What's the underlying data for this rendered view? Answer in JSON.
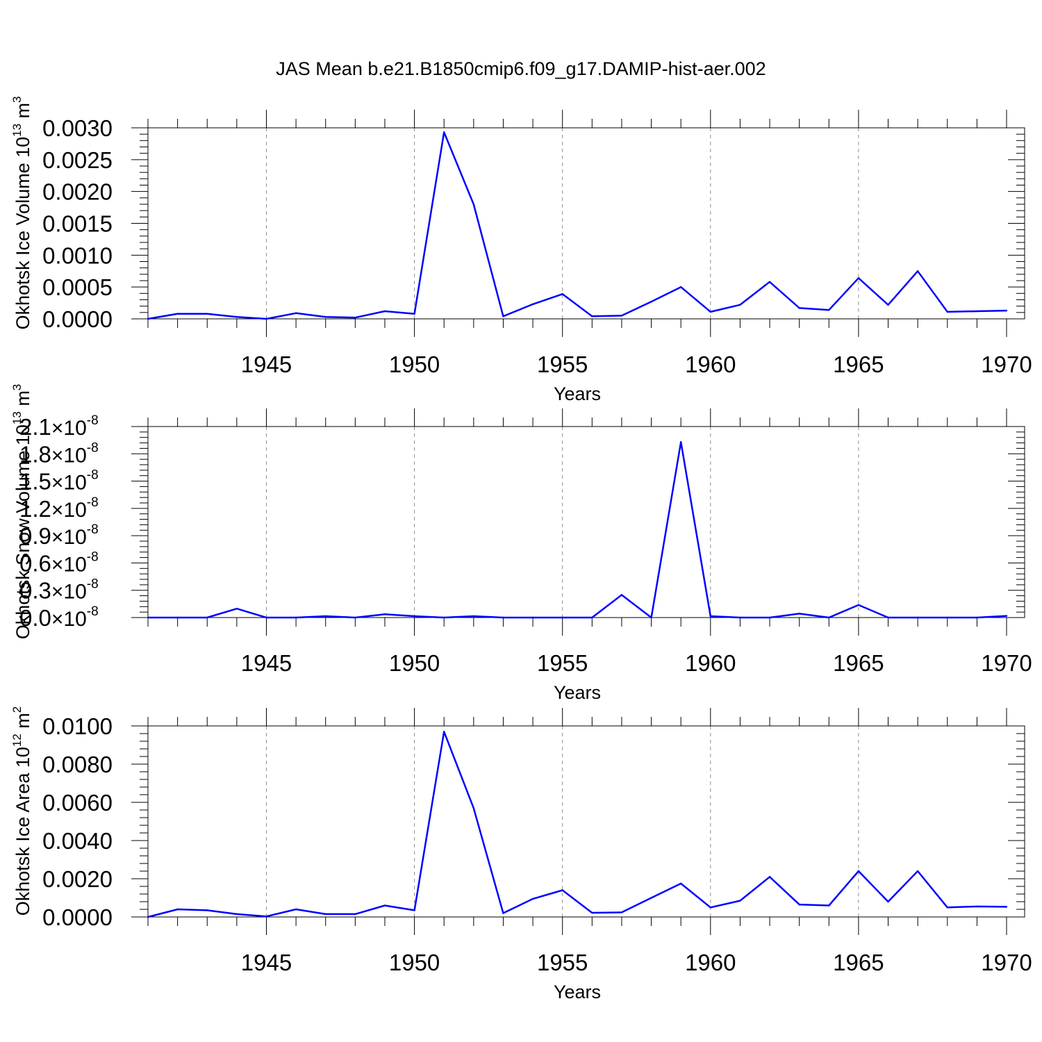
{
  "title": "JAS Mean b.e21.B1850cmip6.f09_g17.DAMIP-hist-aer.002",
  "colors": {
    "line": "#0000ff",
    "axis": "#000000",
    "grid": "#8c8c8c",
    "background": "#ffffff"
  },
  "chart_data": [
    {
      "type": "line",
      "ylabel": {
        "text": "Okhotsk Ice Volume 10",
        "sup": "13",
        "unit": " m",
        "unit_sup": "3"
      },
      "xlabel": "Years",
      "xlim": [
        1941,
        1970
      ],
      "ylim": [
        0,
        0.003
      ],
      "x_ticks": [
        1945,
        1950,
        1955,
        1960,
        1965,
        1970
      ],
      "y_ticks": [
        0,
        0.0005,
        0.001,
        0.0015,
        0.002,
        0.0025,
        0.003
      ],
      "y_tick_labels": [
        "0.0000",
        "0.0005",
        "0.0010",
        "0.0015",
        "0.0020",
        "0.0025",
        "0.0030"
      ],
      "grid": "vertical dashed at major x ticks",
      "x": [
        1941,
        1942,
        1943,
        1944,
        1945,
        1946,
        1947,
        1948,
        1949,
        1950,
        1951,
        1952,
        1953,
        1954,
        1955,
        1956,
        1957,
        1958,
        1959,
        1960,
        1961,
        1962,
        1963,
        1964,
        1965,
        1966,
        1967,
        1968,
        1969,
        1970
      ],
      "values": [
        0.0,
        8e-05,
        8e-05,
        3e-05,
        0.0,
        9e-05,
        3e-05,
        2e-05,
        0.00012,
        8e-05,
        0.00293,
        0.0018,
        4e-05,
        0.00023,
        0.00039,
        4e-05,
        5e-05,
        0.00027,
        0.0005,
        0.00011,
        0.00022,
        0.00058,
        0.00017,
        0.00014,
        0.00064,
        0.00022,
        0.00075,
        0.00011,
        0.00012,
        0.00013
      ]
    },
    {
      "type": "line",
      "ylabel": {
        "text": "Okhotsk Snow Volume 10",
        "sup": "13",
        "unit": " m",
        "unit_sup": "3"
      },
      "xlabel": "Years",
      "xlim": [
        1941,
        1970
      ],
      "ylim": [
        0,
        2.1e-08
      ],
      "x_ticks": [
        1945,
        1950,
        1955,
        1960,
        1965,
        1970
      ],
      "y_ticks": [
        0,
        3e-09,
        6e-09,
        9e-09,
        1.2e-08,
        1.5e-08,
        1.8e-08,
        2.1e-08
      ],
      "y_tick_labels": [
        "0.0",
        "0.3",
        "0.6",
        "0.9",
        "1.2",
        "1.5",
        "1.8",
        "2.1"
      ],
      "y_tick_exponent": "-8",
      "grid": "vertical dashed at major x ticks",
      "x": [
        1941,
        1942,
        1943,
        1944,
        1945,
        1946,
        1947,
        1948,
        1949,
        1950,
        1951,
        1952,
        1953,
        1954,
        1955,
        1956,
        1957,
        1958,
        1959,
        1960,
        1961,
        1962,
        1963,
        1964,
        1965,
        1966,
        1967,
        1968,
        1969,
        1970
      ],
      "values": [
        0.0,
        8e-13,
        0.0,
        9.8e-10,
        0.0,
        0.0,
        1.5e-10,
        0.0,
        3.7e-10,
        1.5e-10,
        0.0,
        1.5e-10,
        0.0,
        0.0,
        0.0,
        0.0,
        2.49e-09,
        0.0,
        1.93e-08,
        1.5e-10,
        0.0,
        0.0,
        4.3e-10,
        0.0,
        1.38e-09,
        0.0,
        0.0,
        0.0,
        0.0,
        1.8e-10
      ]
    },
    {
      "type": "line",
      "ylabel": {
        "text": "Okhotsk Ice Area 10",
        "sup": "12",
        "unit": " m",
        "unit_sup": "2"
      },
      "xlabel": "Years",
      "xlim": [
        1941,
        1970
      ],
      "ylim": [
        0,
        0.01
      ],
      "x_ticks": [
        1945,
        1950,
        1955,
        1960,
        1965,
        1970
      ],
      "y_ticks": [
        0,
        0.002,
        0.004,
        0.006,
        0.008,
        0.01
      ],
      "y_tick_labels": [
        "0.0000",
        "0.0020",
        "0.0040",
        "0.0060",
        "0.0080",
        "0.0100"
      ],
      "grid": "vertical dashed at major x ticks",
      "x": [
        1941,
        1942,
        1943,
        1944,
        1945,
        1946,
        1947,
        1948,
        1949,
        1950,
        1951,
        1952,
        1953,
        1954,
        1955,
        1956,
        1957,
        1958,
        1959,
        1960,
        1961,
        1962,
        1963,
        1964,
        1965,
        1966,
        1967,
        1968,
        1969,
        1970
      ],
      "values": [
        0.0,
        0.0004,
        0.00035,
        0.00015,
        3e-05,
        0.0004,
        0.00015,
        0.00015,
        0.0006,
        0.00035,
        0.0097,
        0.0057,
        0.0002,
        0.00095,
        0.0014,
        0.00022,
        0.00024,
        0.001,
        0.00175,
        0.0005,
        0.00085,
        0.0021,
        0.00065,
        0.0006,
        0.0024,
        0.0008,
        0.0024,
        0.0005,
        0.00055,
        0.00053
      ]
    }
  ]
}
